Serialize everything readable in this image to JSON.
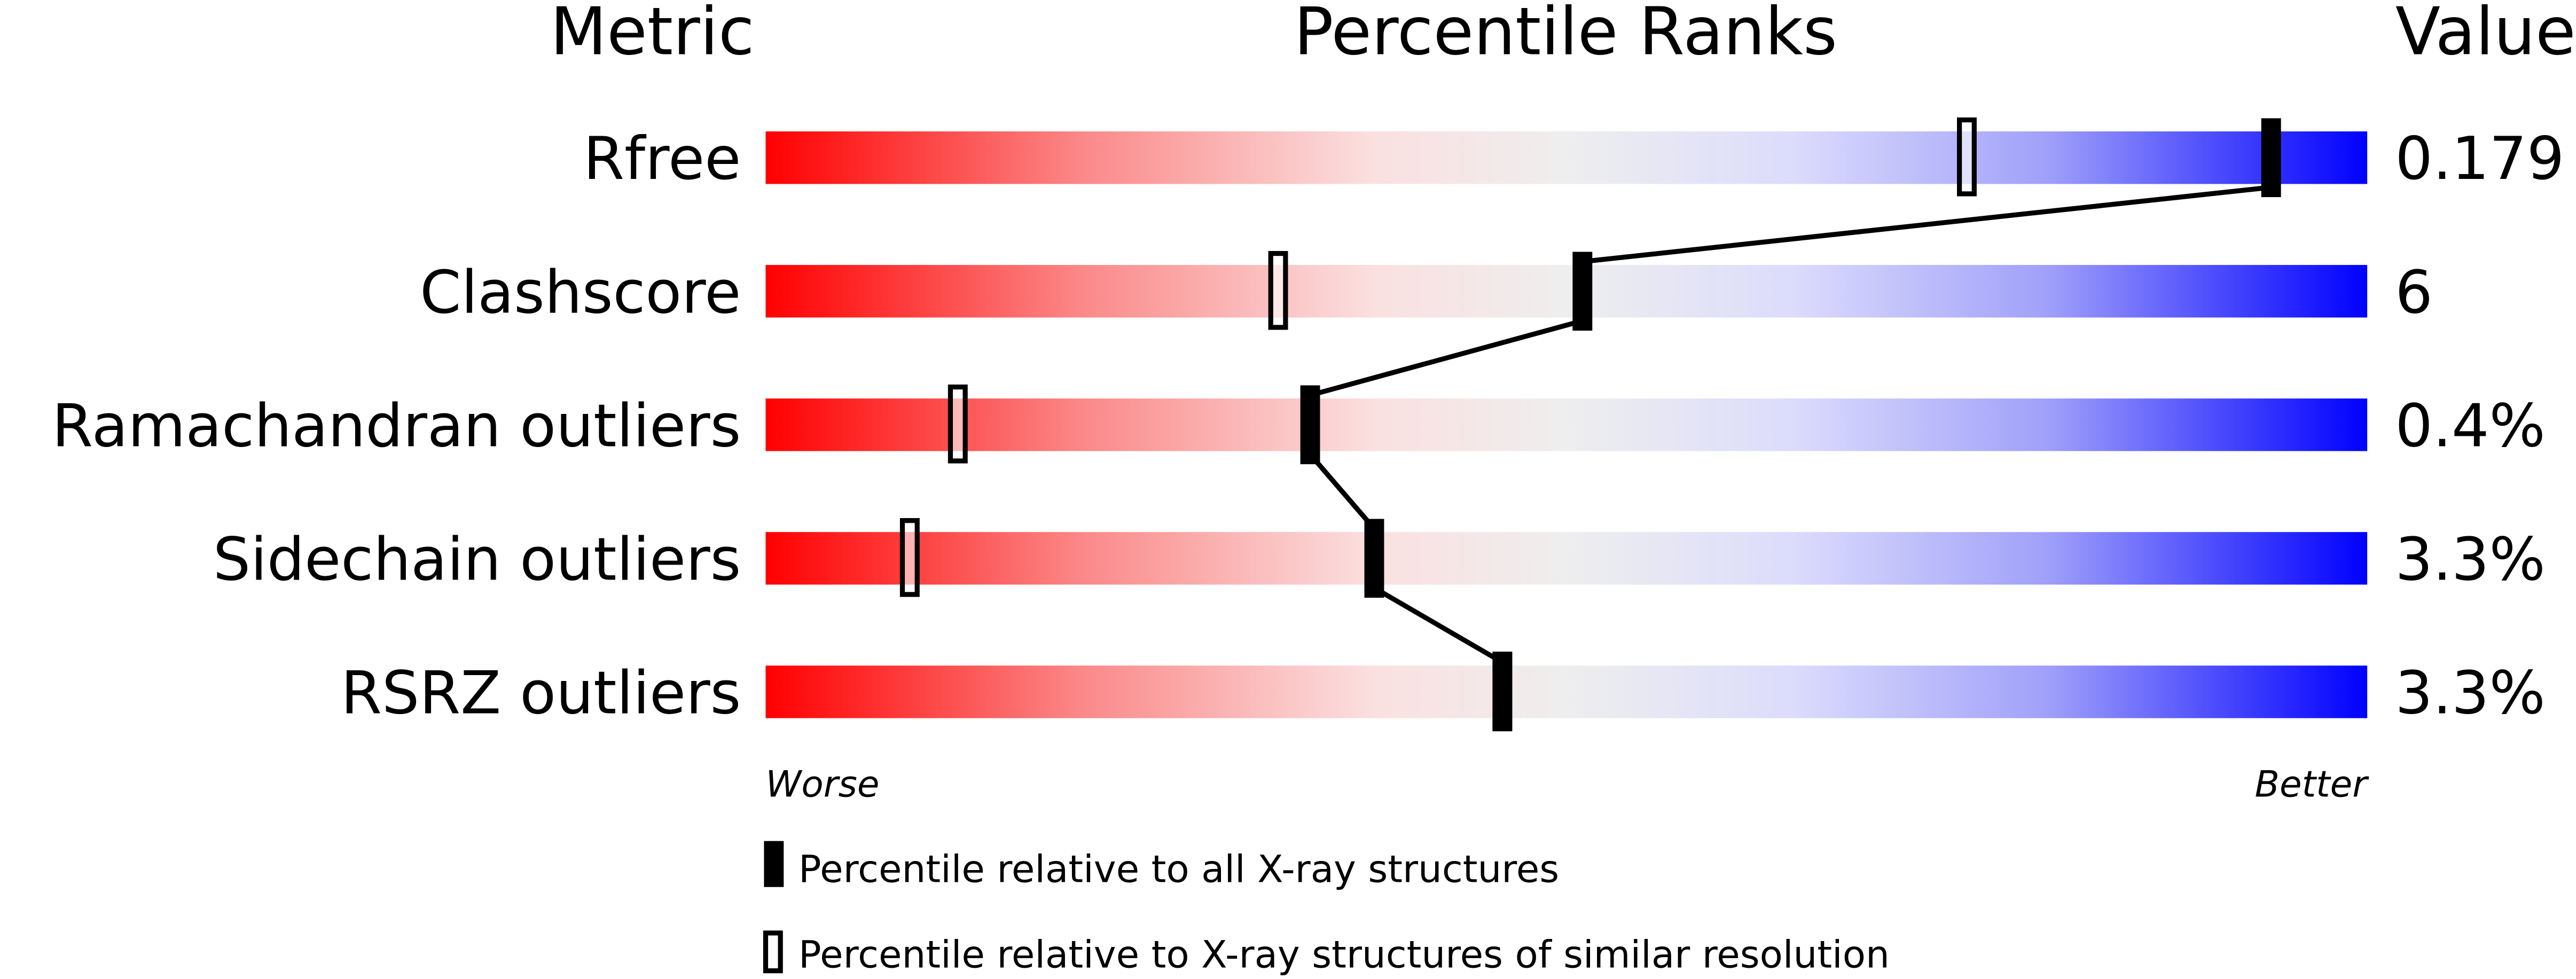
{
  "chart_data": {
    "type": "percentile-slider",
    "headers": {
      "metric": "Metric",
      "percentile": "Percentile Ranks",
      "value": "Value"
    },
    "axis": {
      "left": "Worse",
      "right": "Better",
      "range": [
        0,
        100
      ]
    },
    "metrics": [
      {
        "name": "Rfree",
        "value": "0.179",
        "percentile_all": 94,
        "percentile_similar": 75
      },
      {
        "name": "Clashscore",
        "value": "6",
        "percentile_all": 51,
        "percentile_similar": 32
      },
      {
        "name": "Ramachandran outliers",
        "value": "0.4%",
        "percentile_all": 34,
        "percentile_similar": 12
      },
      {
        "name": "Sidechain outliers",
        "value": "3.3%",
        "percentile_all": 38,
        "percentile_similar": 9
      },
      {
        "name": "RSRZ outliers",
        "value": "3.3%",
        "percentile_all": 46,
        "percentile_similar": 46
      }
    ],
    "legend": [
      {
        "marker": "filled",
        "label": "Percentile relative to all X-ray structures"
      },
      {
        "marker": "open",
        "label": "Percentile relative to X-ray structures of similar resolution"
      }
    ],
    "colors": {
      "worse": "#ff0000",
      "middle": "#eeeeee",
      "better": "#0000ff",
      "marker": "#000000"
    }
  }
}
